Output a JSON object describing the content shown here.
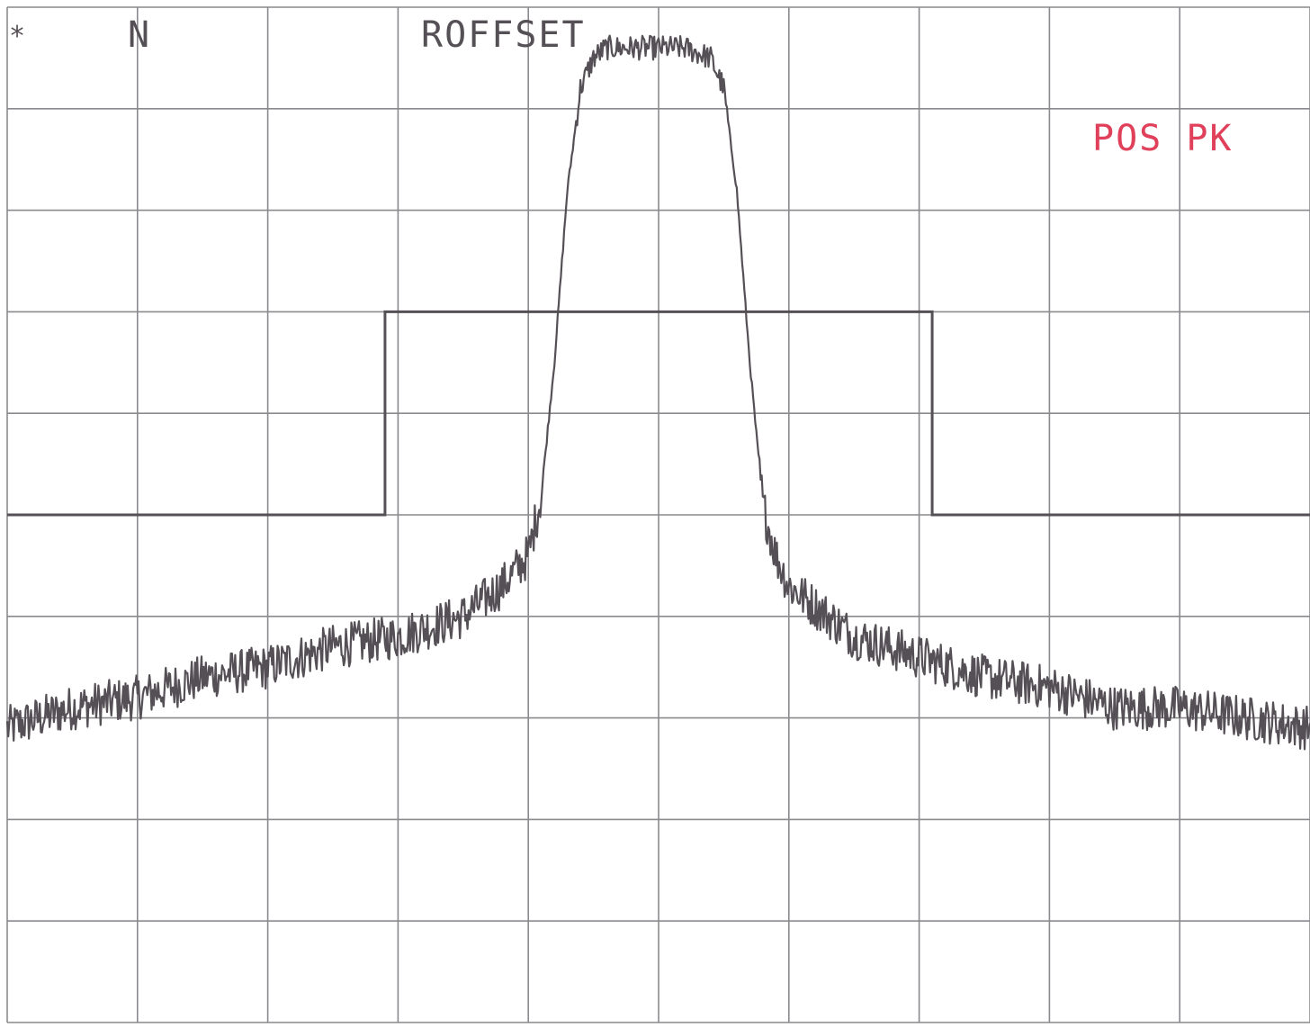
{
  "chart_data": {
    "type": "line",
    "title": "",
    "xlabel": "",
    "ylabel": "",
    "x_divisions": 10,
    "y_divisions": 10,
    "xlim": [
      0,
      10
    ],
    "ylim": [
      0,
      10
    ],
    "grid": true,
    "annotations": {
      "top_left_marker": "*",
      "top_left_label": "N",
      "top_center": "ROFFSET",
      "top_right": "POS PK"
    },
    "colors": {
      "trace": "#555055",
      "grid": "#8a8a8e",
      "annotation": "#555055",
      "detector_label": "#e0405a"
    },
    "series": [
      {
        "kind": "mask",
        "x": [
          0,
          2.9,
          2.9,
          7.1,
          7.1,
          10
        ],
        "y": [
          5.0,
          5.0,
          7.0,
          7.0,
          5.0,
          5.0
        ]
      },
      {
        "kind": "spectrum",
        "x": [
          0,
          0.5,
          1.0,
          1.5,
          2.0,
          2.5,
          3.0,
          3.5,
          3.8,
          4.0,
          4.1,
          4.2,
          4.3,
          4.4,
          4.5,
          4.6,
          4.8,
          5.0,
          5.2,
          5.4,
          5.5,
          5.6,
          5.7,
          5.8,
          5.9,
          6.0,
          6.5,
          7.0,
          7.5,
          8.0,
          8.5,
          9.0,
          9.5,
          10
        ],
        "y": [
          2.9,
          3.1,
          3.2,
          3.4,
          3.5,
          3.7,
          3.8,
          4.0,
          4.3,
          4.6,
          5.2,
          6.5,
          8.2,
          9.2,
          9.5,
          9.6,
          9.6,
          9.6,
          9.6,
          9.5,
          9.2,
          8.2,
          6.5,
          5.1,
          4.6,
          4.3,
          3.8,
          3.6,
          3.4,
          3.3,
          3.1,
          3.1,
          3.0,
          2.9
        ]
      }
    ]
  }
}
